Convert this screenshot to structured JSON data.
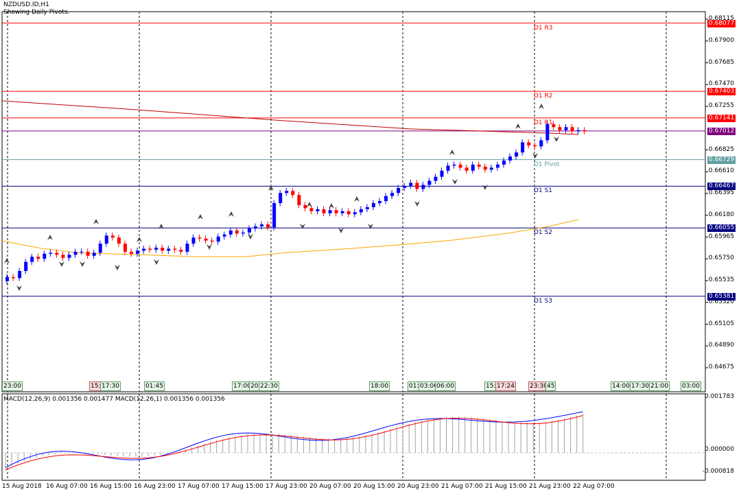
{
  "header": {
    "symbol": "NZDUSD.ID,H1",
    "subtitle": "Showing Daily Pivots."
  },
  "price_axis": {
    "labels": [
      "0.68115",
      "0.67900",
      "0.67685",
      "0.67470",
      "0.67255",
      "0.66825",
      "0.66610",
      "0.66395",
      "0.66180",
      "0.65965",
      "0.65750",
      "0.65535",
      "0.65320",
      "0.65105",
      "0.64890",
      "0.64675"
    ]
  },
  "pivots": [
    {
      "name": "D1 R3",
      "price": "0.68077",
      "color": "#ff0000"
    },
    {
      "name": "D1 R2",
      "price": "0.67403",
      "color": "#ff0000"
    },
    {
      "name": "D1 R1",
      "price": "0.67141",
      "color": "#ff0000"
    },
    {
      "name": "D1 Pivot",
      "price": "0.66729",
      "color": "#5f9ea0"
    },
    {
      "name": "D1 S1",
      "price": "0.66467",
      "color": "#000080"
    },
    {
      "name": "D1 S2",
      "price": "0.66055",
      "color": "#000080"
    },
    {
      "name": "D1 S3",
      "price": "0.65381",
      "color": "#000080"
    }
  ],
  "current_price": {
    "value": "0.67012",
    "color": "#800080"
  },
  "time_boxes": [
    "23:00",
    "15:",
    "17:30",
    "01:45",
    "17:00",
    "20:",
    "22:30",
    "18:00",
    "01:",
    "03:00",
    "06:00",
    "15:",
    "17:24",
    "23:30",
    "45",
    "14:00",
    "17:30",
    "21:00",
    "03:00"
  ],
  "macd": {
    "label": "MACD(12,26,9) 0.001356 0.001477 MACD(12,26,1) 0.001356 0.001356",
    "axis": [
      "0.001783",
      "0.000000",
      "-0.000818"
    ]
  },
  "time_axis": [
    "15 Aug 2018",
    "16 Aug 07:00",
    "16 Aug 15:00",
    "16 Aug 23:00",
    "17 Aug 07:00",
    "17 Aug 15:00",
    "17 Aug 23:00",
    "20 Aug 07:00",
    "20 Aug 15:00",
    "20 Aug 23:00",
    "21 Aug 07:00",
    "21 Aug 15:00",
    "21 Aug 23:00",
    "22 Aug 07:00"
  ],
  "colors": {
    "bull": "#0000ff",
    "bear": "#ff0000",
    "ma": "#ffa500",
    "macd_line": "#0000ff",
    "signal_line": "#ff0000"
  }
}
